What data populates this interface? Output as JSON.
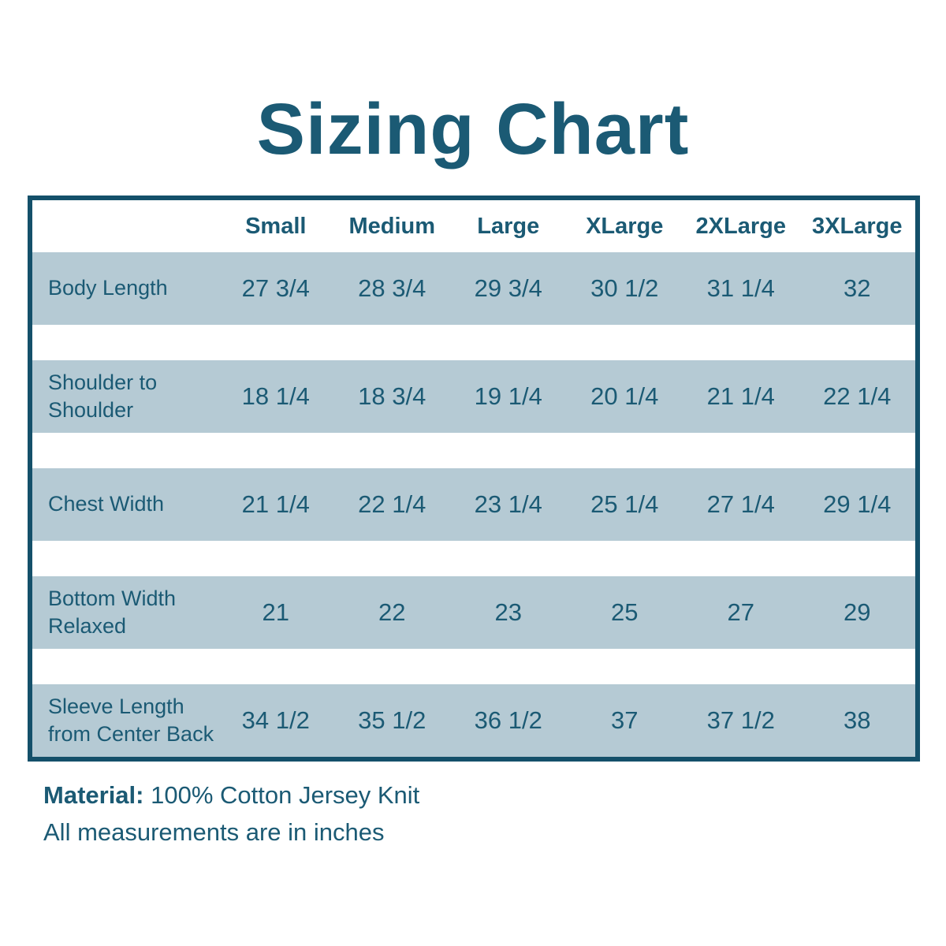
{
  "chart_data": {
    "type": "table",
    "title": "Sizing Chart",
    "columns": [
      "Small",
      "Medium",
      "Large",
      "XLarge",
      "2XLarge",
      "3XLarge"
    ],
    "rows": [
      {
        "label": "Body Length",
        "values": [
          "27 3/4",
          "28 3/4",
          "29 3/4",
          "30 1/2",
          "31 1/4",
          "32"
        ]
      },
      {
        "label": "Shoulder to Shoulder",
        "values": [
          "18 1/4",
          "18 3/4",
          "19 1/4",
          "20 1/4",
          "21 1/4",
          "22 1/4"
        ]
      },
      {
        "label": "Chest Width",
        "values": [
          "21 1/4",
          "22 1/4",
          "23 1/4",
          "25 1/4",
          "27 1/4",
          "29 1/4"
        ]
      },
      {
        "label": "Bottom Width Relaxed",
        "values": [
          "21",
          "22",
          "23",
          "25",
          "27",
          "29"
        ]
      },
      {
        "label": "Sleeve Length from Center Back",
        "values": [
          "34 1/2",
          "35 1/2",
          "36 1/2",
          "37",
          "37 1/2",
          "38"
        ]
      }
    ]
  },
  "footer": {
    "material_label": "Material:",
    "material_value": "100% Cotton Jersey Knit",
    "units_note": "All measurements are in inches"
  },
  "colors": {
    "text-teal": "#1B5A74",
    "border-teal": "#14506A",
    "row-bg": "#B5CAD4",
    "page-bg": "#FFFFFF"
  }
}
